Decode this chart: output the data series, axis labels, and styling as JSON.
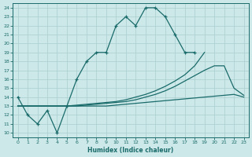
{
  "bg_color": "#cde8e8",
  "line_color": "#1a6b6b",
  "grid_color": "#aacece",
  "xlabel": "Humidex (Indice chaleur)",
  "xlim": [
    -0.5,
    23.5
  ],
  "ylim": [
    9.5,
    24.5
  ],
  "xticks": [
    0,
    1,
    2,
    3,
    4,
    5,
    6,
    7,
    8,
    9,
    10,
    11,
    12,
    13,
    14,
    15,
    16,
    17,
    18,
    19,
    20,
    21,
    22,
    23
  ],
  "yticks": [
    10,
    11,
    12,
    13,
    14,
    15,
    16,
    17,
    18,
    19,
    20,
    21,
    22,
    23,
    24
  ],
  "line1_x": [
    0,
    1,
    2,
    3,
    4,
    5,
    6,
    7,
    8,
    9,
    10,
    11,
    12,
    13,
    14,
    15,
    16,
    17,
    18
  ],
  "line1_y": [
    14,
    12,
    11,
    12.5,
    10,
    13,
    16,
    18,
    19,
    19,
    22,
    23,
    22,
    24,
    24,
    23,
    21,
    19,
    19
  ],
  "line2_x": [
    0,
    4,
    5,
    6,
    7,
    8,
    9,
    10,
    11,
    12,
    13,
    14,
    15,
    16,
    17,
    18,
    19
  ],
  "line2_y": [
    13,
    13,
    13,
    13.1,
    13.2,
    13.3,
    13.4,
    13.5,
    13.7,
    14.0,
    14.3,
    14.7,
    15.2,
    15.8,
    16.5,
    17.5,
    19.0
  ],
  "line3_x": [
    0,
    4,
    5,
    6,
    7,
    8,
    9,
    10,
    11,
    12,
    13,
    14,
    15,
    16,
    17,
    18,
    19,
    20,
    21,
    22,
    23
  ],
  "line3_y": [
    13,
    13,
    13,
    13,
    13.1,
    13.2,
    13.3,
    13.4,
    13.5,
    13.7,
    14.0,
    14.3,
    14.7,
    15.2,
    15.8,
    16.4,
    17.0,
    17.5,
    17.5,
    15.0,
    14.2
  ],
  "line4_x": [
    0,
    4,
    5,
    6,
    7,
    8,
    9,
    10,
    11,
    12,
    13,
    14,
    15,
    16,
    17,
    18,
    19,
    20,
    21,
    22,
    23
  ],
  "line4_y": [
    13,
    13,
    13,
    13,
    13,
    13,
    13,
    13.1,
    13.2,
    13.3,
    13.4,
    13.5,
    13.6,
    13.7,
    13.8,
    13.9,
    14.0,
    14.1,
    14.2,
    14.3,
    14.0
  ]
}
